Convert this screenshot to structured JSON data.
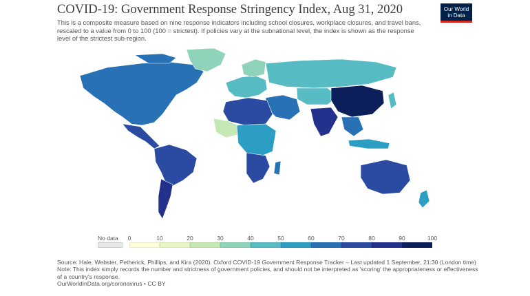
{
  "title": "COVID-19: Government Response Stringency Index, Aug 31, 2020",
  "subtitle": "This is a composite measure based on nine response indicators including school closures, workplace closures, and travel bans, rescaled to a value from 0 to 100 (100 = strictest). If policies vary at the subnational level, the index is shown as the response level of the strictest sub-region.",
  "logo": {
    "line1": "Our World",
    "line2": "in Data",
    "bg": "#002147",
    "accent": "#d42b21"
  },
  "legend": {
    "no_data_label": "No data",
    "no_data_color": "#e8e8e8",
    "ticks": [
      "0",
      "10",
      "20",
      "30",
      "40",
      "50",
      "60",
      "70",
      "80",
      "90",
      "100"
    ],
    "colors": [
      "#ffffdb",
      "#eaf5c4",
      "#c6e8b4",
      "#8fd3ba",
      "#56bbc3",
      "#2c9ec4",
      "#2771b4",
      "#2a4ba1",
      "#24318c",
      "#0c1f5a"
    ]
  },
  "regions": [
    {
      "name": "North America",
      "level": 6
    },
    {
      "name": "Greenland",
      "level": 3
    },
    {
      "name": "Central America",
      "level": 7
    },
    {
      "name": "South America",
      "level": 7
    },
    {
      "name": "Argentina",
      "level": 8
    },
    {
      "name": "Europe",
      "level": 4
    },
    {
      "name": "Scandinavia",
      "level": 3
    },
    {
      "name": "Russia",
      "level": 4
    },
    {
      "name": "Middle East",
      "level": 6
    },
    {
      "name": "North Africa",
      "level": 7
    },
    {
      "name": "West Africa",
      "level": 2
    },
    {
      "name": "Central Africa",
      "level": 5
    },
    {
      "name": "Southern Africa",
      "level": 7
    },
    {
      "name": "Madagascar",
      "level": 6
    },
    {
      "name": "Central Asia",
      "level": 4
    },
    {
      "name": "India",
      "level": 8
    },
    {
      "name": "China",
      "level": 9
    },
    {
      "name": "Southeast Asia",
      "level": 6
    },
    {
      "name": "Indonesia",
      "level": 5
    },
    {
      "name": "Japan",
      "level": 4
    },
    {
      "name": "Australia",
      "level": 7
    },
    {
      "name": "New Zealand",
      "level": 5
    }
  ],
  "footer": {
    "source": "Source: Hale, Webster, Petherick, Phillips, and Kira (2020). Oxford COVID-19 Government Response Tracker – Last updated 1 September, 21:30 (London time)",
    "note": "Note: This index simply records the number and strictness of government policies, and should not be interpreted as 'scoring' the appropriateness or effectiveness of a country's response.",
    "link": "OurWorldInData.org/coronavirus • CC BY"
  }
}
